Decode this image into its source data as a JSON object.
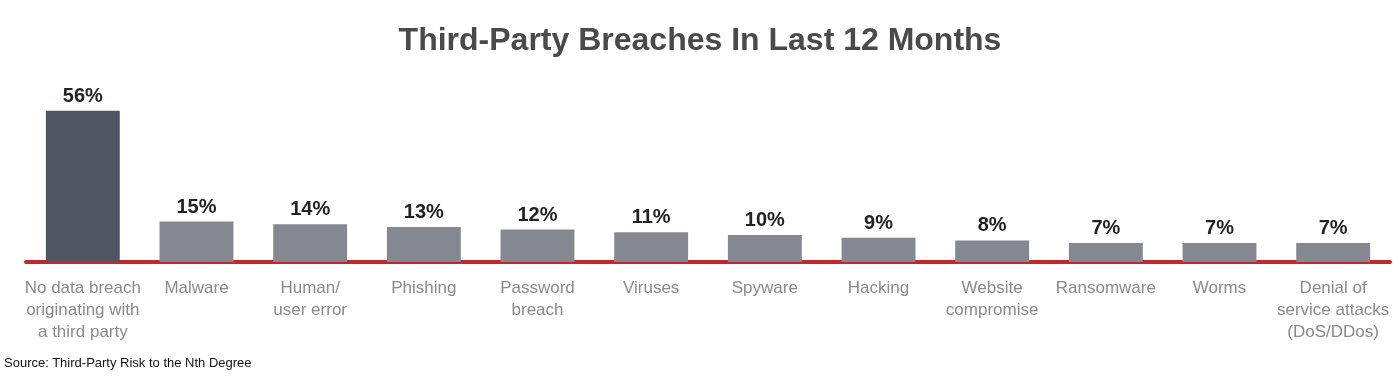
{
  "chart_data": {
    "type": "bar",
    "title": "Third-Party Breaches In Last 12 Months",
    "categories": [
      "No data breach\noriginating with\na third party",
      "Malware",
      "Human/\nuser error",
      "Phishing",
      "Password\nbreach",
      "Viruses",
      "Spyware",
      "Hacking",
      "Website\ncompromise",
      "Ransomware",
      "Worms",
      "Denial of\nservice attacks\n(DoS/DDos)"
    ],
    "values": [
      56,
      15,
      14,
      13,
      12,
      11,
      10,
      9,
      8,
      7,
      7,
      7
    ],
    "colors": [
      "#4f5563",
      "#868891",
      "#868891",
      "#868891",
      "#868891",
      "#868891",
      "#868891",
      "#868891",
      "#868891",
      "#868891",
      "#868891",
      "#868891"
    ],
    "value_labels": [
      "56%",
      "15%",
      "14%",
      "13%",
      "12%",
      "11%",
      "10%",
      "9%",
      "8%",
      "7%",
      "7%",
      "7%"
    ],
    "annotations": [
      "Source: Third-Party Risk to the Nth Degree"
    ],
    "tick_labels": "x"
  }
}
